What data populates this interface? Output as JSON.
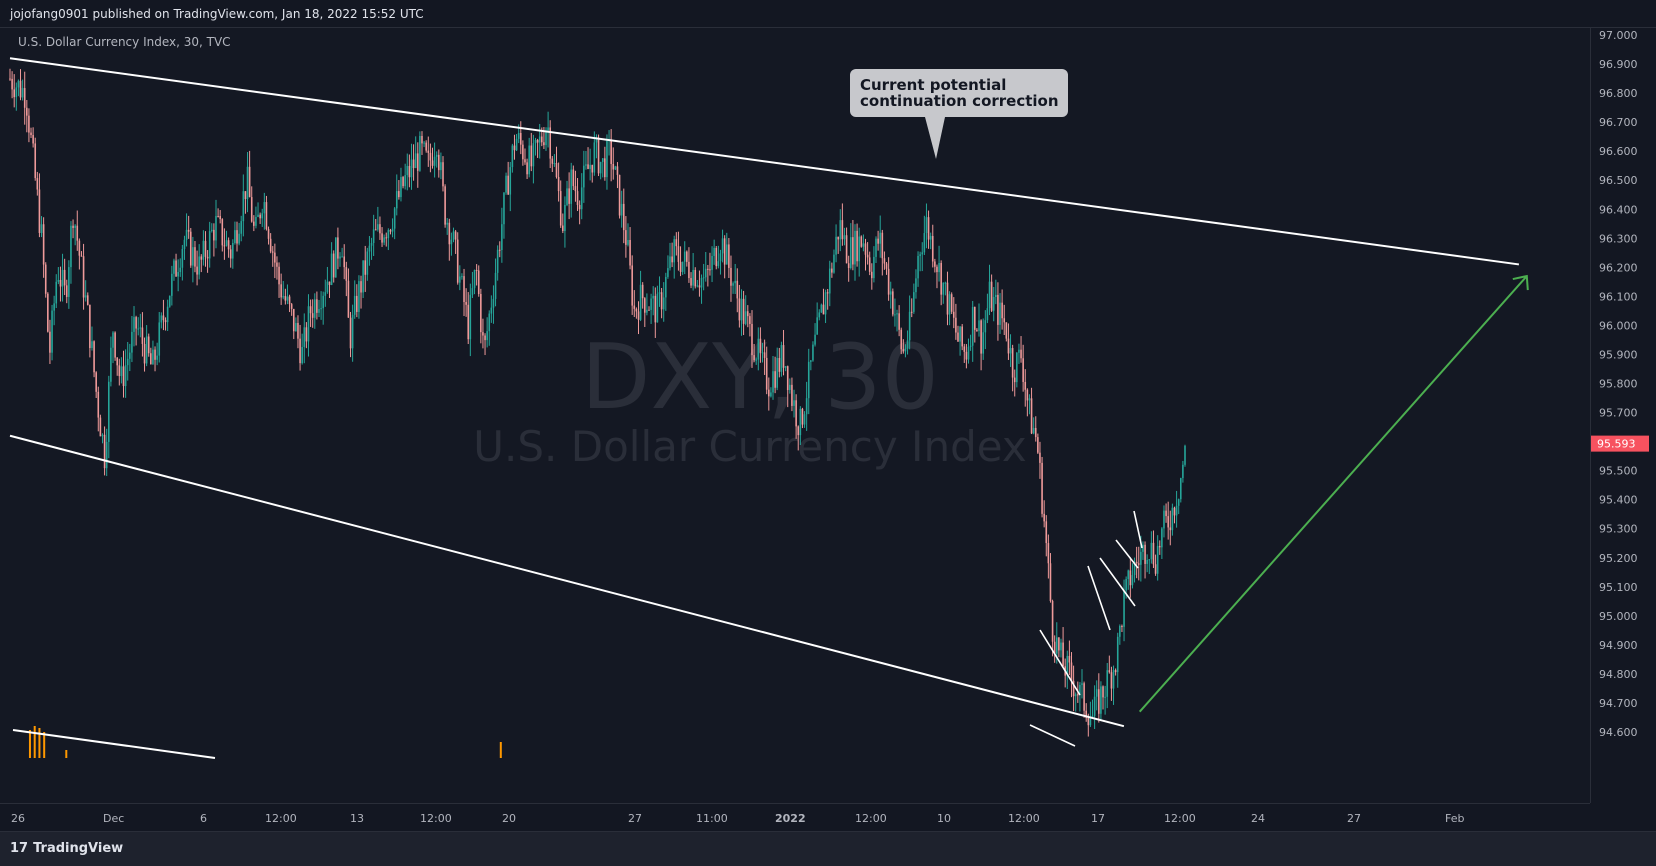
{
  "header": {
    "published_by": "jojofang0901 published on TradingView.com, Jan 18, 2022 15:52 UTC"
  },
  "symbol_line": "U.S. Dollar Currency Index, 30, TVC",
  "watermark": {
    "ticker": "DXY, 30",
    "name": "U.S. Dollar Currency Index"
  },
  "callout": {
    "line1": "Current potential",
    "line2": "continuation correction"
  },
  "footer": {
    "brand": "TradingView"
  },
  "colors": {
    "background": "#131722",
    "up": "#26a69a",
    "down": "#ef9a9a",
    "trendline": "#ffffff",
    "projection_arrow": "#4caf50",
    "price_badge": "#f7525f",
    "volume": "#ff9800",
    "callout_bg": "#c7c8cc"
  },
  "chart_data": {
    "type": "candlestick",
    "title": "U.S. Dollar Currency Index, 30, TVC",
    "last_price": "95.593",
    "y_ticks": [
      "97.000",
      "96.900",
      "96.800",
      "96.700",
      "96.600",
      "96.500",
      "96.400",
      "96.300",
      "96.200",
      "96.100",
      "96.000",
      "95.900",
      "95.800",
      "95.700",
      "95.500",
      "95.400",
      "95.300",
      "95.200",
      "95.100",
      "95.000",
      "94.900",
      "94.800",
      "94.700",
      "94.600"
    ],
    "ylim": [
      94.52,
      97.03
    ],
    "x_ticks": [
      "26",
      "Dec",
      "6",
      "12:00",
      "13",
      "12:00",
      "20",
      "27",
      "11:00",
      "2022",
      "12:00",
      "10",
      "12:00",
      "17",
      "12:00",
      "24",
      "27",
      "Feb"
    ],
    "price_path": [
      [
        0,
        96.85
      ],
      [
        0.01,
        96.8
      ],
      [
        0.015,
        96.55
      ],
      [
        0.02,
        96.3
      ],
      [
        0.025,
        95.9
      ],
      [
        0.03,
        96.2
      ],
      [
        0.035,
        96.1
      ],
      [
        0.04,
        96.4
      ],
      [
        0.045,
        96.2
      ],
      [
        0.05,
        96.0
      ],
      [
        0.055,
        95.75
      ],
      [
        0.06,
        95.55
      ],
      [
        0.065,
        96.0
      ],
      [
        0.07,
        95.8
      ],
      [
        0.08,
        96.0
      ],
      [
        0.09,
        95.85
      ],
      [
        0.1,
        96.1
      ],
      [
        0.11,
        96.3
      ],
      [
        0.12,
        96.2
      ],
      [
        0.13,
        96.35
      ],
      [
        0.14,
        96.25
      ],
      [
        0.15,
        96.5
      ],
      [
        0.155,
        96.3
      ],
      [
        0.16,
        96.45
      ],
      [
        0.17,
        96.15
      ],
      [
        0.18,
        96.0
      ],
      [
        0.185,
        95.9
      ],
      [
        0.19,
        96.05
      ],
      [
        0.2,
        96.15
      ],
      [
        0.21,
        96.3
      ],
      [
        0.215,
        95.95
      ],
      [
        0.22,
        96.1
      ],
      [
        0.23,
        96.3
      ],
      [
        0.24,
        96.35
      ],
      [
        0.25,
        96.5
      ],
      [
        0.26,
        96.6
      ],
      [
        0.265,
        96.55
      ],
      [
        0.27,
        96.65
      ],
      [
        0.275,
        96.4
      ],
      [
        0.28,
        96.3
      ],
      [
        0.29,
        96.0
      ],
      [
        0.295,
        96.2
      ],
      [
        0.3,
        95.9
      ],
      [
        0.305,
        96.1
      ],
      [
        0.31,
        96.3
      ],
      [
        0.315,
        96.5
      ],
      [
        0.32,
        96.65
      ],
      [
        0.33,
        96.55
      ],
      [
        0.34,
        96.7
      ],
      [
        0.35,
        96.35
      ],
      [
        0.355,
        96.5
      ],
      [
        0.36,
        96.45
      ],
      [
        0.37,
        96.6
      ],
      [
        0.375,
        96.55
      ],
      [
        0.38,
        96.6
      ],
      [
        0.39,
        96.3
      ],
      [
        0.395,
        96.05
      ],
      [
        0.4,
        96.1
      ],
      [
        0.41,
        96.05
      ],
      [
        0.42,
        96.25
      ],
      [
        0.43,
        96.2
      ],
      [
        0.44,
        96.15
      ],
      [
        0.45,
        96.3
      ],
      [
        0.455,
        96.2
      ],
      [
        0.46,
        96.1
      ],
      [
        0.47,
        95.95
      ],
      [
        0.48,
        95.8
      ],
      [
        0.49,
        95.9
      ],
      [
        0.495,
        95.75
      ],
      [
        0.5,
        95.65
      ],
      [
        0.51,
        95.95
      ],
      [
        0.52,
        96.2
      ],
      [
        0.525,
        96.35
      ],
      [
        0.53,
        96.25
      ],
      [
        0.54,
        96.3
      ],
      [
        0.545,
        96.2
      ],
      [
        0.55,
        96.3
      ],
      [
        0.56,
        96.05
      ],
      [
        0.565,
        95.9
      ],
      [
        0.57,
        96.0
      ],
      [
        0.575,
        96.25
      ],
      [
        0.58,
        96.35
      ],
      [
        0.59,
        96.15
      ],
      [
        0.6,
        95.95
      ],
      [
        0.605,
        95.9
      ],
      [
        0.61,
        96.05
      ],
      [
        0.615,
        95.95
      ],
      [
        0.62,
        96.1
      ],
      [
        0.63,
        96.0
      ],
      [
        0.635,
        95.85
      ],
      [
        0.64,
        95.9
      ],
      [
        0.645,
        95.7
      ],
      [
        0.65,
        95.6
      ],
      [
        0.655,
        95.3
      ],
      [
        0.66,
        94.95
      ],
      [
        0.665,
        94.85
      ],
      [
        0.67,
        94.8
      ],
      [
        0.675,
        94.75
      ],
      [
        0.68,
        94.7
      ],
      [
        0.685,
        94.65
      ],
      [
        0.69,
        94.72
      ],
      [
        0.695,
        94.78
      ],
      [
        0.7,
        94.85
      ],
      [
        0.705,
        95.05
      ],
      [
        0.71,
        95.15
      ],
      [
        0.715,
        95.2
      ],
      [
        0.72,
        95.25
      ],
      [
        0.725,
        95.2
      ],
      [
        0.73,
        95.3
      ],
      [
        0.735,
        95.35
      ],
      [
        0.74,
        95.45
      ],
      [
        0.745,
        95.6
      ]
    ],
    "annotations": {
      "upper_channel_line": [
        [
          0.0,
          96.92
        ],
        [
          0.955,
          96.21
        ]
      ],
      "lower_channel_line": [
        [
          0.0,
          95.62
        ],
        [
          0.705,
          94.62
        ]
      ],
      "projection_arrow": [
        [
          0.715,
          94.67
        ],
        [
          0.96,
          96.17
        ]
      ]
    }
  }
}
